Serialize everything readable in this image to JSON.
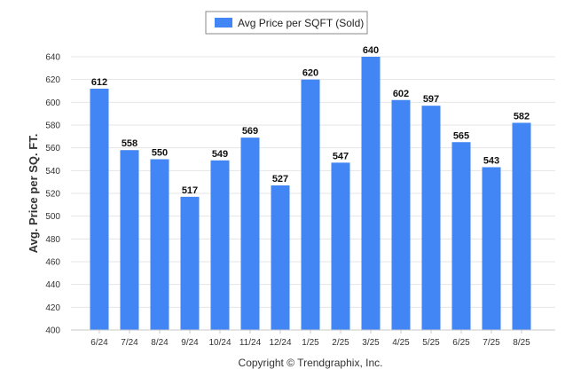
{
  "chart_data": {
    "type": "bar",
    "categories": [
      "6/24",
      "7/24",
      "8/24",
      "9/24",
      "10/24",
      "11/24",
      "12/24",
      "1/25",
      "2/25",
      "3/25",
      "4/25",
      "5/25",
      "6/25",
      "7/25",
      "8/25"
    ],
    "series": [
      {
        "name": "Avg Price per SQFT (Sold)",
        "values": [
          612,
          558,
          550,
          517,
          549,
          569,
          527,
          620,
          547,
          640,
          602,
          597,
          565,
          543,
          582
        ]
      }
    ],
    "title": "",
    "xlabel": "",
    "ylabel": "Avg. Price per SQ. FT.",
    "ylim": [
      400,
      640
    ],
    "yticks": [
      400,
      420,
      440,
      460,
      480,
      500,
      520,
      540,
      560,
      580,
      600,
      620,
      640
    ],
    "grid": true,
    "legend_position": "top-center",
    "bar_color": "#4285f4"
  },
  "footer": {
    "copyright": "Copyright © Trendgraphix, Inc."
  }
}
